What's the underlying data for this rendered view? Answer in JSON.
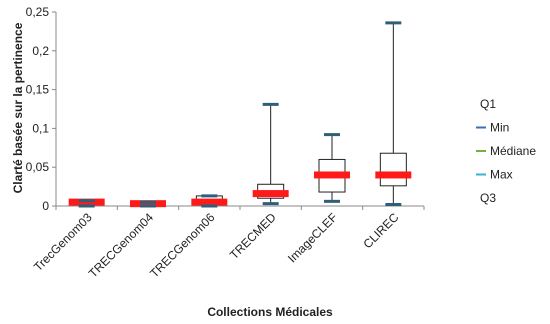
{
  "chart_data": {
    "type": "box",
    "xlabel": "Collections Médicales",
    "ylabel": "Clarté basée sur la pertinence",
    "ylim": [
      0,
      0.25
    ],
    "yticks": [
      0,
      0.05,
      0.1,
      0.15,
      0.2,
      0.25
    ],
    "ytick_labels": [
      "0",
      "0,05",
      "0,1",
      "0,15",
      "0,2",
      "0,25"
    ],
    "grid": false,
    "legend_position": "right",
    "categories": [
      "TrecGenom03",
      "TRECGenom04",
      "TRECGenom06",
      "TRECMED",
      "ImageCLEF",
      "CLIREC"
    ],
    "series": [
      {
        "name": "Q1",
        "values": [
          0.002,
          0.001,
          0.002,
          0.01,
          0.018,
          0.026
        ]
      },
      {
        "name": "Min",
        "values": [
          0.0,
          0.0,
          0.0,
          0.003,
          0.006,
          0.002
        ]
      },
      {
        "name": "Médiane",
        "values": [
          0.005,
          0.003,
          0.005,
          0.016,
          0.04,
          0.04
        ]
      },
      {
        "name": "Max",
        "values": [
          0.007,
          0.005,
          0.013,
          0.131,
          0.092,
          0.236
        ]
      },
      {
        "name": "Q3",
        "values": [
          0.007,
          0.004,
          0.013,
          0.028,
          0.06,
          0.068
        ]
      }
    ],
    "legend": [
      {
        "label": "Q1",
        "marker": ""
      },
      {
        "label": "Min",
        "marker": "#3a6fb0"
      },
      {
        "label": "Médiane",
        "marker": "#6db33f"
      },
      {
        "label": "Max",
        "marker": "#3ab0d4"
      },
      {
        "label": "Q3",
        "marker": ""
      }
    ],
    "colors": {
      "box_border": "#222222",
      "whisker": "#222222",
      "whisker_cap": "#2e5f7a",
      "median_bar": "#ff1a1a",
      "axis": "#888888"
    }
  }
}
